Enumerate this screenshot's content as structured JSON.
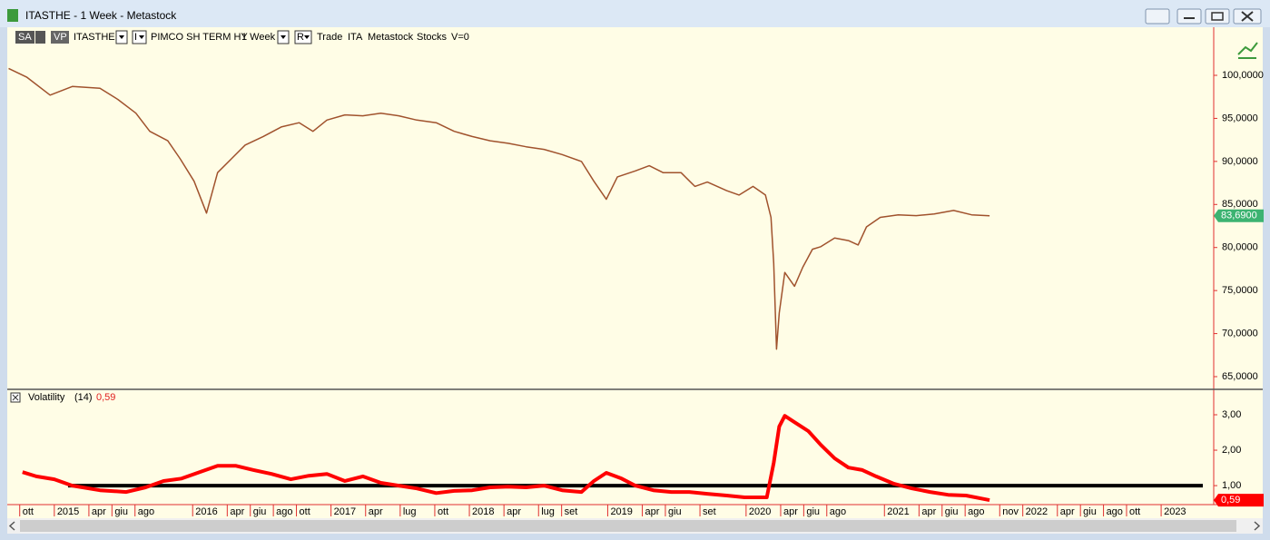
{
  "window": {
    "title": "ITASTHE - 1 Week - Metastock"
  },
  "toolbar": {
    "sa": "SA",
    "vp": "VP",
    "symbol": "ITASTHE",
    "i_button": "I",
    "name": "PIMCO SH TERM HY",
    "period": "1 Week",
    "r_button": "R",
    "mode": "Trade",
    "exchange": "ITA",
    "source": "Metastock",
    "kind": "Stocks",
    "volume": "V=0"
  },
  "chart_data": [
    {
      "type": "line",
      "color": "#a0522d",
      "x": [
        2014.67,
        2014.8,
        2014.97,
        2015.13,
        2015.33,
        2015.46,
        2015.59,
        2015.69,
        2015.82,
        2015.91,
        2016.01,
        2016.1,
        2016.18,
        2016.28,
        2016.38,
        2016.51,
        2016.64,
        2016.77,
        2016.87,
        2016.97,
        2017.1,
        2017.23,
        2017.36,
        2017.49,
        2017.62,
        2017.76,
        2017.89,
        2018.02,
        2018.15,
        2018.28,
        2018.41,
        2018.54,
        2018.67,
        2018.81,
        2018.9,
        2018.99,
        2019.07,
        2019.2,
        2019.3,
        2019.4,
        2019.53,
        2019.63,
        2019.72,
        2019.86,
        2019.95,
        2020.05,
        2020.14,
        2020.18,
        2020.2,
        2020.22,
        2020.24,
        2020.28,
        2020.35,
        2020.41,
        2020.48,
        2020.54,
        2020.64,
        2020.74,
        2020.81,
        2020.87,
        2020.97,
        2021.1,
        2021.23,
        2021.36,
        2021.5,
        2021.63,
        2021.76
      ],
      "values": [
        100.8,
        99.8,
        97.7,
        98.7,
        98.5,
        97.2,
        95.6,
        93.5,
        92.4,
        90.3,
        87.7,
        84.0,
        88.7,
        90.3,
        91.9,
        92.9,
        94.0,
        94.5,
        93.5,
        94.8,
        95.4,
        95.3,
        95.6,
        95.3,
        94.8,
        94.5,
        93.5,
        92.9,
        92.4,
        92.1,
        91.7,
        91.4,
        90.8,
        90.0,
        87.7,
        85.6,
        88.2,
        88.9,
        89.5,
        88.7,
        88.7,
        87.1,
        87.6,
        86.6,
        86.1,
        87.1,
        86.1,
        83.5,
        78.2,
        68.2,
        72.4,
        77.1,
        75.5,
        77.7,
        79.8,
        80.1,
        81.1,
        80.8,
        80.3,
        82.4,
        83.5,
        83.8,
        83.7,
        83.9,
        84.3,
        83.8,
        83.69
      ],
      "last_value": {
        "value": 83.69,
        "label": "83,6900",
        "color": "#3cb371"
      },
      "xlim": [
        2014.66,
        2023.38
      ],
      "ylim": [
        63.63,
        103.69
      ],
      "yticks": [
        {
          "value": 65,
          "label": "65,0000"
        },
        {
          "value": 70,
          "label": "70,0000"
        },
        {
          "value": 75,
          "label": "75,0000"
        },
        {
          "value": 80,
          "label": "80,0000"
        },
        {
          "value": 85,
          "label": "85,0000"
        },
        {
          "value": 90,
          "label": "90,0000"
        },
        {
          "value": 95,
          "label": "95,0000"
        },
        {
          "value": 100,
          "label": "100,0000"
        }
      ]
    },
    {
      "type": "line",
      "params": "(14)",
      "x": [
        2014.77,
        2014.87,
        2015.0,
        2015.13,
        2015.33,
        2015.52,
        2015.66,
        2015.79,
        2015.92,
        2016.05,
        2016.18,
        2016.31,
        2016.44,
        2016.57,
        2016.71,
        2016.84,
        2016.97,
        2017.1,
        2017.23,
        2017.36,
        2017.49,
        2017.62,
        2017.76,
        2017.89,
        2018.02,
        2018.15,
        2018.28,
        2018.41,
        2018.54,
        2018.67,
        2018.81,
        2018.9,
        2018.99,
        2019.1,
        2019.2,
        2019.33,
        2019.46,
        2019.59,
        2019.72,
        2019.86,
        2019.99,
        2020.15,
        2020.2,
        2020.24,
        2020.28,
        2020.35,
        2020.45,
        2020.54,
        2020.64,
        2020.74,
        2020.84,
        2020.94,
        2021.07,
        2021.2,
        2021.33,
        2021.46,
        2021.59,
        2021.76
      ],
      "series": [
        {
          "name": "Volatility",
          "color": "#ff0000",
          "values": [
            1.38,
            1.26,
            1.18,
            1.0,
            0.87,
            0.82,
            0.95,
            1.13,
            1.2,
            1.38,
            1.56,
            1.56,
            1.44,
            1.33,
            1.18,
            1.28,
            1.33,
            1.13,
            1.26,
            1.08,
            1.0,
            0.92,
            0.79,
            0.85,
            0.87,
            0.95,
            0.97,
            0.95,
            1.0,
            0.87,
            0.82,
            1.13,
            1.36,
            1.2,
            1.0,
            0.87,
            0.82,
            0.82,
            0.77,
            0.72,
            0.67,
            0.67,
            1.64,
            2.67,
            2.97,
            2.79,
            2.54,
            2.15,
            1.77,
            1.51,
            1.44,
            1.26,
            1.05,
            0.92,
            0.82,
            0.74,
            0.72,
            0.59
          ]
        }
      ],
      "last_value": {
        "value": 0.59,
        "label": "0,59",
        "color": "#ff0000"
      },
      "reference_line": 1,
      "xlim": [
        2014.66,
        2023.38
      ],
      "ylim": [
        0.49,
        3.64
      ],
      "yticks": [
        {
          "value": 1,
          "label": "1,00"
        },
        {
          "value": 2,
          "label": "2,00"
        },
        {
          "value": 3,
          "label": "3,00"
        }
      ],
      "xticks": [
        {
          "value": 2014.75,
          "label": "ott"
        },
        {
          "value": 2015,
          "label": "2015"
        },
        {
          "value": 2015.25,
          "label": "apr"
        },
        {
          "value": 2015.4167,
          "label": "giu"
        },
        {
          "value": 2015.5833,
          "label": "ago"
        },
        {
          "value": 2016,
          "label": "2016"
        },
        {
          "value": 2016.25,
          "label": "apr"
        },
        {
          "value": 2016.4167,
          "label": "giu"
        },
        {
          "value": 2016.5833,
          "label": "ago"
        },
        {
          "value": 2016.75,
          "label": "ott"
        },
        {
          "value": 2017,
          "label": "2017"
        },
        {
          "value": 2017.25,
          "label": "apr"
        },
        {
          "value": 2017.5,
          "label": "lug"
        },
        {
          "value": 2017.75,
          "label": "ott"
        },
        {
          "value": 2018,
          "label": "2018"
        },
        {
          "value": 2018.25,
          "label": "apr"
        },
        {
          "value": 2018.5,
          "label": "lug"
        },
        {
          "value": 2018.6667,
          "label": "set"
        },
        {
          "value": 2019,
          "label": "2019"
        },
        {
          "value": 2019.25,
          "label": "apr"
        },
        {
          "value": 2019.4167,
          "label": "giu"
        },
        {
          "value": 2019.6667,
          "label": "set"
        },
        {
          "value": 2020,
          "label": "2020"
        },
        {
          "value": 2020.25,
          "label": "apr"
        },
        {
          "value": 2020.4167,
          "label": "giu"
        },
        {
          "value": 2020.5833,
          "label": "ago"
        },
        {
          "value": 2021,
          "label": "2021"
        },
        {
          "value": 2021.25,
          "label": "apr"
        },
        {
          "value": 2021.4167,
          "label": "giu"
        },
        {
          "value": 2021.5833,
          "label": "ago"
        },
        {
          "value": 2021.8333,
          "label": "nov"
        },
        {
          "value": 2022,
          "label": "2022"
        },
        {
          "value": 2022.25,
          "label": "apr"
        },
        {
          "value": 2022.4167,
          "label": "giu"
        },
        {
          "value": 2022.5833,
          "label": "ago"
        },
        {
          "value": 2022.75,
          "label": "ott"
        },
        {
          "value": 2023,
          "label": "2023"
        }
      ]
    }
  ]
}
